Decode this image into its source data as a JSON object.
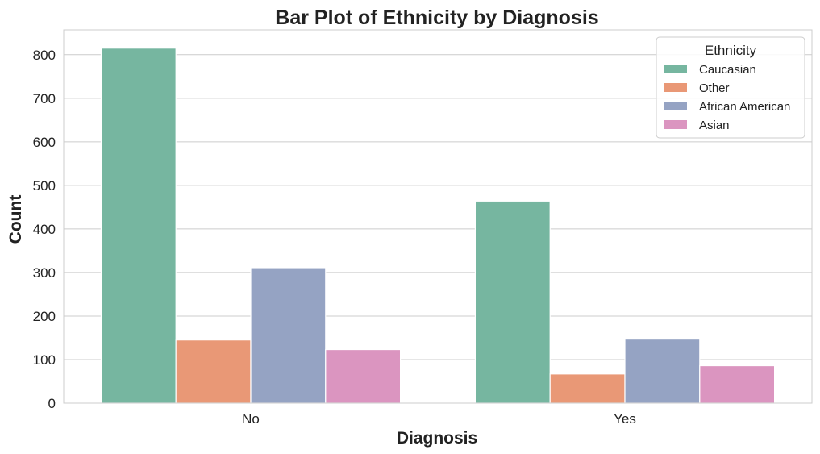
{
  "chart_data": {
    "type": "bar",
    "title": "Bar Plot of Ethnicity by Diagnosis",
    "xlabel": "Diagnosis",
    "ylabel": "Count",
    "categories": [
      "No",
      "Yes"
    ],
    "series": [
      {
        "name": "Caucasian",
        "values": [
          815,
          464
        ],
        "color": "#76b6a0"
      },
      {
        "name": "Other",
        "values": [
          145,
          67
        ],
        "color": "#e99876"
      },
      {
        "name": "African American",
        "values": [
          311,
          147
        ],
        "color": "#95a3c3"
      },
      {
        "name": "Asian",
        "values": [
          123,
          86
        ],
        "color": "#db95c0"
      }
    ],
    "yticks": [
      0,
      100,
      200,
      300,
      400,
      500,
      600,
      700,
      800
    ],
    "ylim": [
      0,
      857
    ],
    "grid": "horizontal",
    "legend": {
      "title": "Ethnicity",
      "position": "top-right"
    }
  }
}
